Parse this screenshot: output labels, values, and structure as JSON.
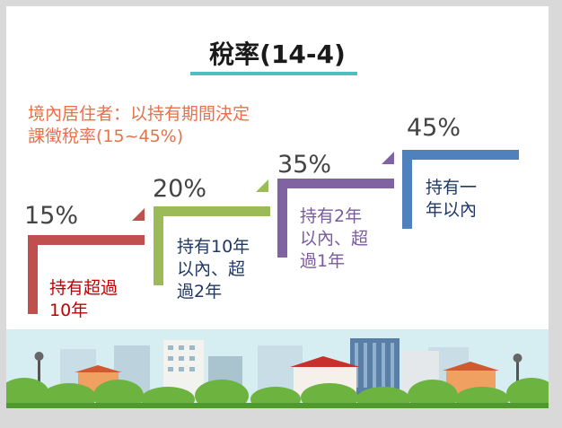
{
  "title": "稅率(14-4)",
  "subtitle": "境內居住者：以持有期間決定\n課徵稅率(15~45%)",
  "steps": [
    {
      "percent": "15%",
      "label": "持有超過\n10年",
      "color": "#c0504d",
      "label_color": "#c00000"
    },
    {
      "percent": "20%",
      "label": "持有10年\n以內、超\n過2年",
      "color": "#9bbb59",
      "label_color": "#1f3864"
    },
    {
      "percent": "35%",
      "label": "持有2年\n以內、超\n過1年",
      "color": "#8064a2",
      "label_color": "#7a5aa0"
    },
    {
      "percent": "45%",
      "label": "持有一\n年以內",
      "color": "#4f81bd",
      "label_color": "#1f3864"
    }
  ]
}
